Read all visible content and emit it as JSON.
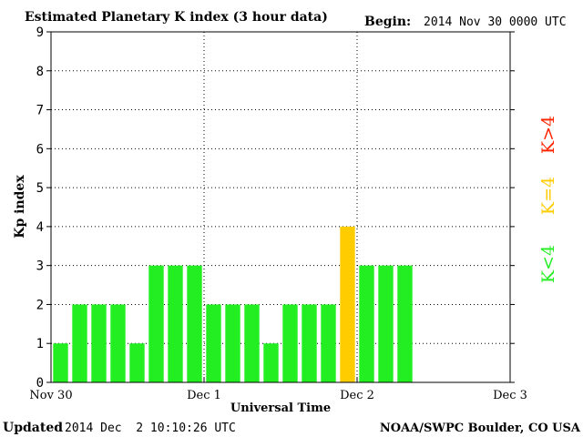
{
  "header": {
    "title": "Estimated Planetary K index (3 hour data)",
    "begin_label": "Begin:",
    "begin_value": "2014 Nov 30 0000 UTC"
  },
  "footer": {
    "updated_label": "Updated",
    "updated_value": "2014 Dec  2 10:10:26 UTC",
    "credit": "NOAA/SWPC Boulder, CO USA"
  },
  "legend": {
    "items": [
      {
        "label": "K<4",
        "color": "#22ee22"
      },
      {
        "label": "K=4",
        "color": "#ffcc00"
      },
      {
        "label": "K>4",
        "color": "#ff2200"
      }
    ]
  },
  "colors": {
    "low": "#22ee22",
    "equal": "#ffcc00",
    "high": "#ff2200",
    "axis": "#000000",
    "grid": "#000000"
  },
  "chart_data": {
    "type": "bar",
    "title": "Estimated Planetary K index (3 hour data)",
    "xlabel": "Universal Time",
    "ylabel": "Kp index",
    "ylim": [
      0,
      9
    ],
    "yticks": [
      0,
      1,
      2,
      3,
      4,
      5,
      6,
      7,
      8,
      9
    ],
    "xticks": [
      {
        "label": "Nov 30",
        "day": 0
      },
      {
        "label": "Dec 1",
        "day": 1
      },
      {
        "label": "Dec 2",
        "day": 2
      },
      {
        "label": "Dec 3",
        "day": 3
      }
    ],
    "xlim_days": [
      0,
      3
    ],
    "bar_hours": 3,
    "grid": true,
    "values": [
      1,
      2,
      2,
      2,
      1,
      3,
      3,
      3,
      2,
      2,
      2,
      1,
      2,
      2,
      2,
      4,
      3,
      3,
      3
    ]
  }
}
